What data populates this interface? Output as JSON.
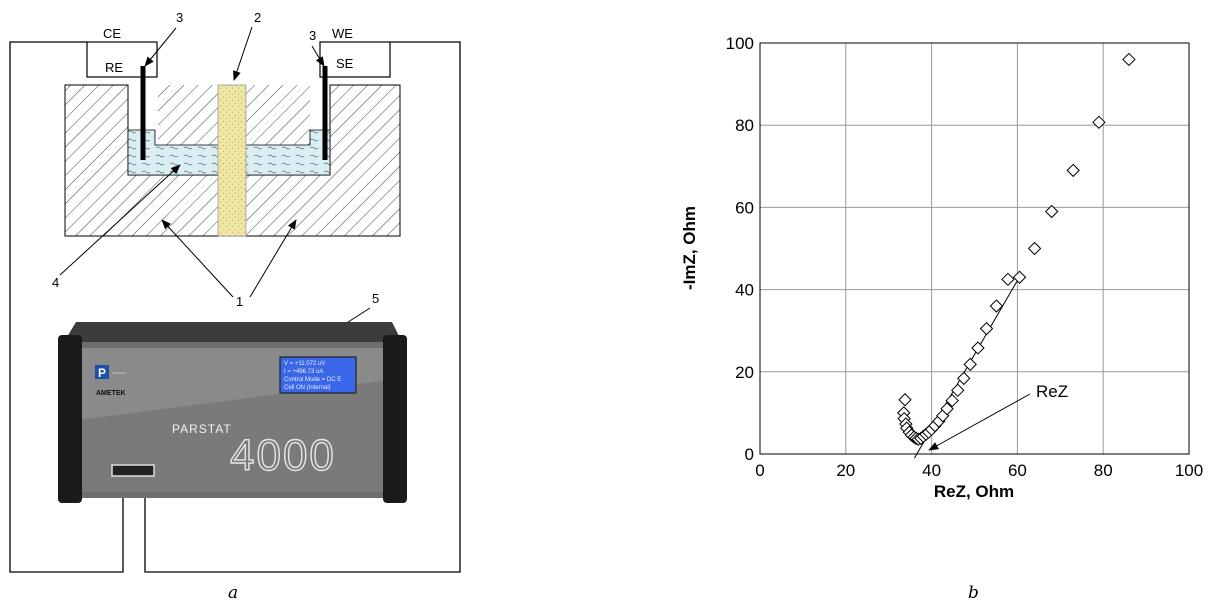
{
  "panel_a": {
    "electrode_labels": {
      "ce": "CE",
      "re": "RE",
      "we": "WE",
      "se": "SE"
    },
    "callouts": {
      "n1": "1",
      "n2": "2",
      "n3_left": "3",
      "n3_right": "3",
      "n4": "4",
      "n5": "5"
    },
    "device": {
      "brand": "AMETEK",
      "maker": "Princeton Applied Research",
      "model_name": "PARSTAT",
      "model_number": "4000",
      "lcd_lines": [
        "V = +11.072 uV",
        "I = +496.73 uA",
        "Control Mode = DC E",
        "Cell ON    (Internal)"
      ]
    },
    "caption": "a",
    "colors": {
      "electrolyte": "#dbeef3",
      "membrane": "#f0e6a8",
      "device_body": "#2b2b2b",
      "lcd": "#3a66e8"
    }
  },
  "panel_b": {
    "caption": "b",
    "annotation": "ReZ",
    "chart_data": {
      "type": "scatter",
      "xlabel": "ReZ, Ohm",
      "ylabel": "-ImZ, Ohm",
      "xlim": [
        0,
        100
      ],
      "ylim": [
        0,
        100
      ],
      "xticks": [
        0,
        20,
        40,
        60,
        80,
        100
      ],
      "yticks": [
        0,
        20,
        40,
        60,
        80,
        100
      ],
      "grid": true,
      "marker": "diamond",
      "points": [
        [
          33.8,
          13.2
        ],
        [
          33.5,
          10.0
        ],
        [
          33.6,
          8.6
        ],
        [
          34.0,
          7.3
        ],
        [
          34.2,
          6.3
        ],
        [
          34.8,
          5.3
        ],
        [
          35.3,
          4.6
        ],
        [
          35.9,
          4.1
        ],
        [
          36.4,
          3.8
        ],
        [
          36.9,
          3.6
        ],
        [
          37.5,
          3.8
        ],
        [
          38.1,
          4.3
        ],
        [
          38.7,
          4.8
        ],
        [
          39.3,
          5.3
        ],
        [
          40.0,
          6.0
        ],
        [
          40.8,
          6.9
        ],
        [
          41.7,
          8.0
        ],
        [
          42.6,
          9.3
        ],
        [
          43.6,
          11.0
        ],
        [
          44.8,
          13.0
        ],
        [
          46.1,
          15.5
        ],
        [
          47.5,
          18.4
        ],
        [
          49.0,
          21.8
        ],
        [
          50.8,
          25.8
        ],
        [
          52.8,
          30.5
        ],
        [
          55.1,
          36.0
        ],
        [
          57.8,
          42.5
        ],
        [
          60.5,
          43.0
        ],
        [
          64.0,
          50.0
        ],
        [
          68.0,
          59.0
        ],
        [
          73.0,
          69.0
        ],
        [
          79.0,
          80.7
        ],
        [
          86.0,
          96.0
        ]
      ],
      "fit_line": [
        [
          36.0,
          -1.0
        ],
        [
          61.0,
          44.0
        ]
      ],
      "arrow_target": [
        38.5,
        0.0
      ]
    }
  }
}
